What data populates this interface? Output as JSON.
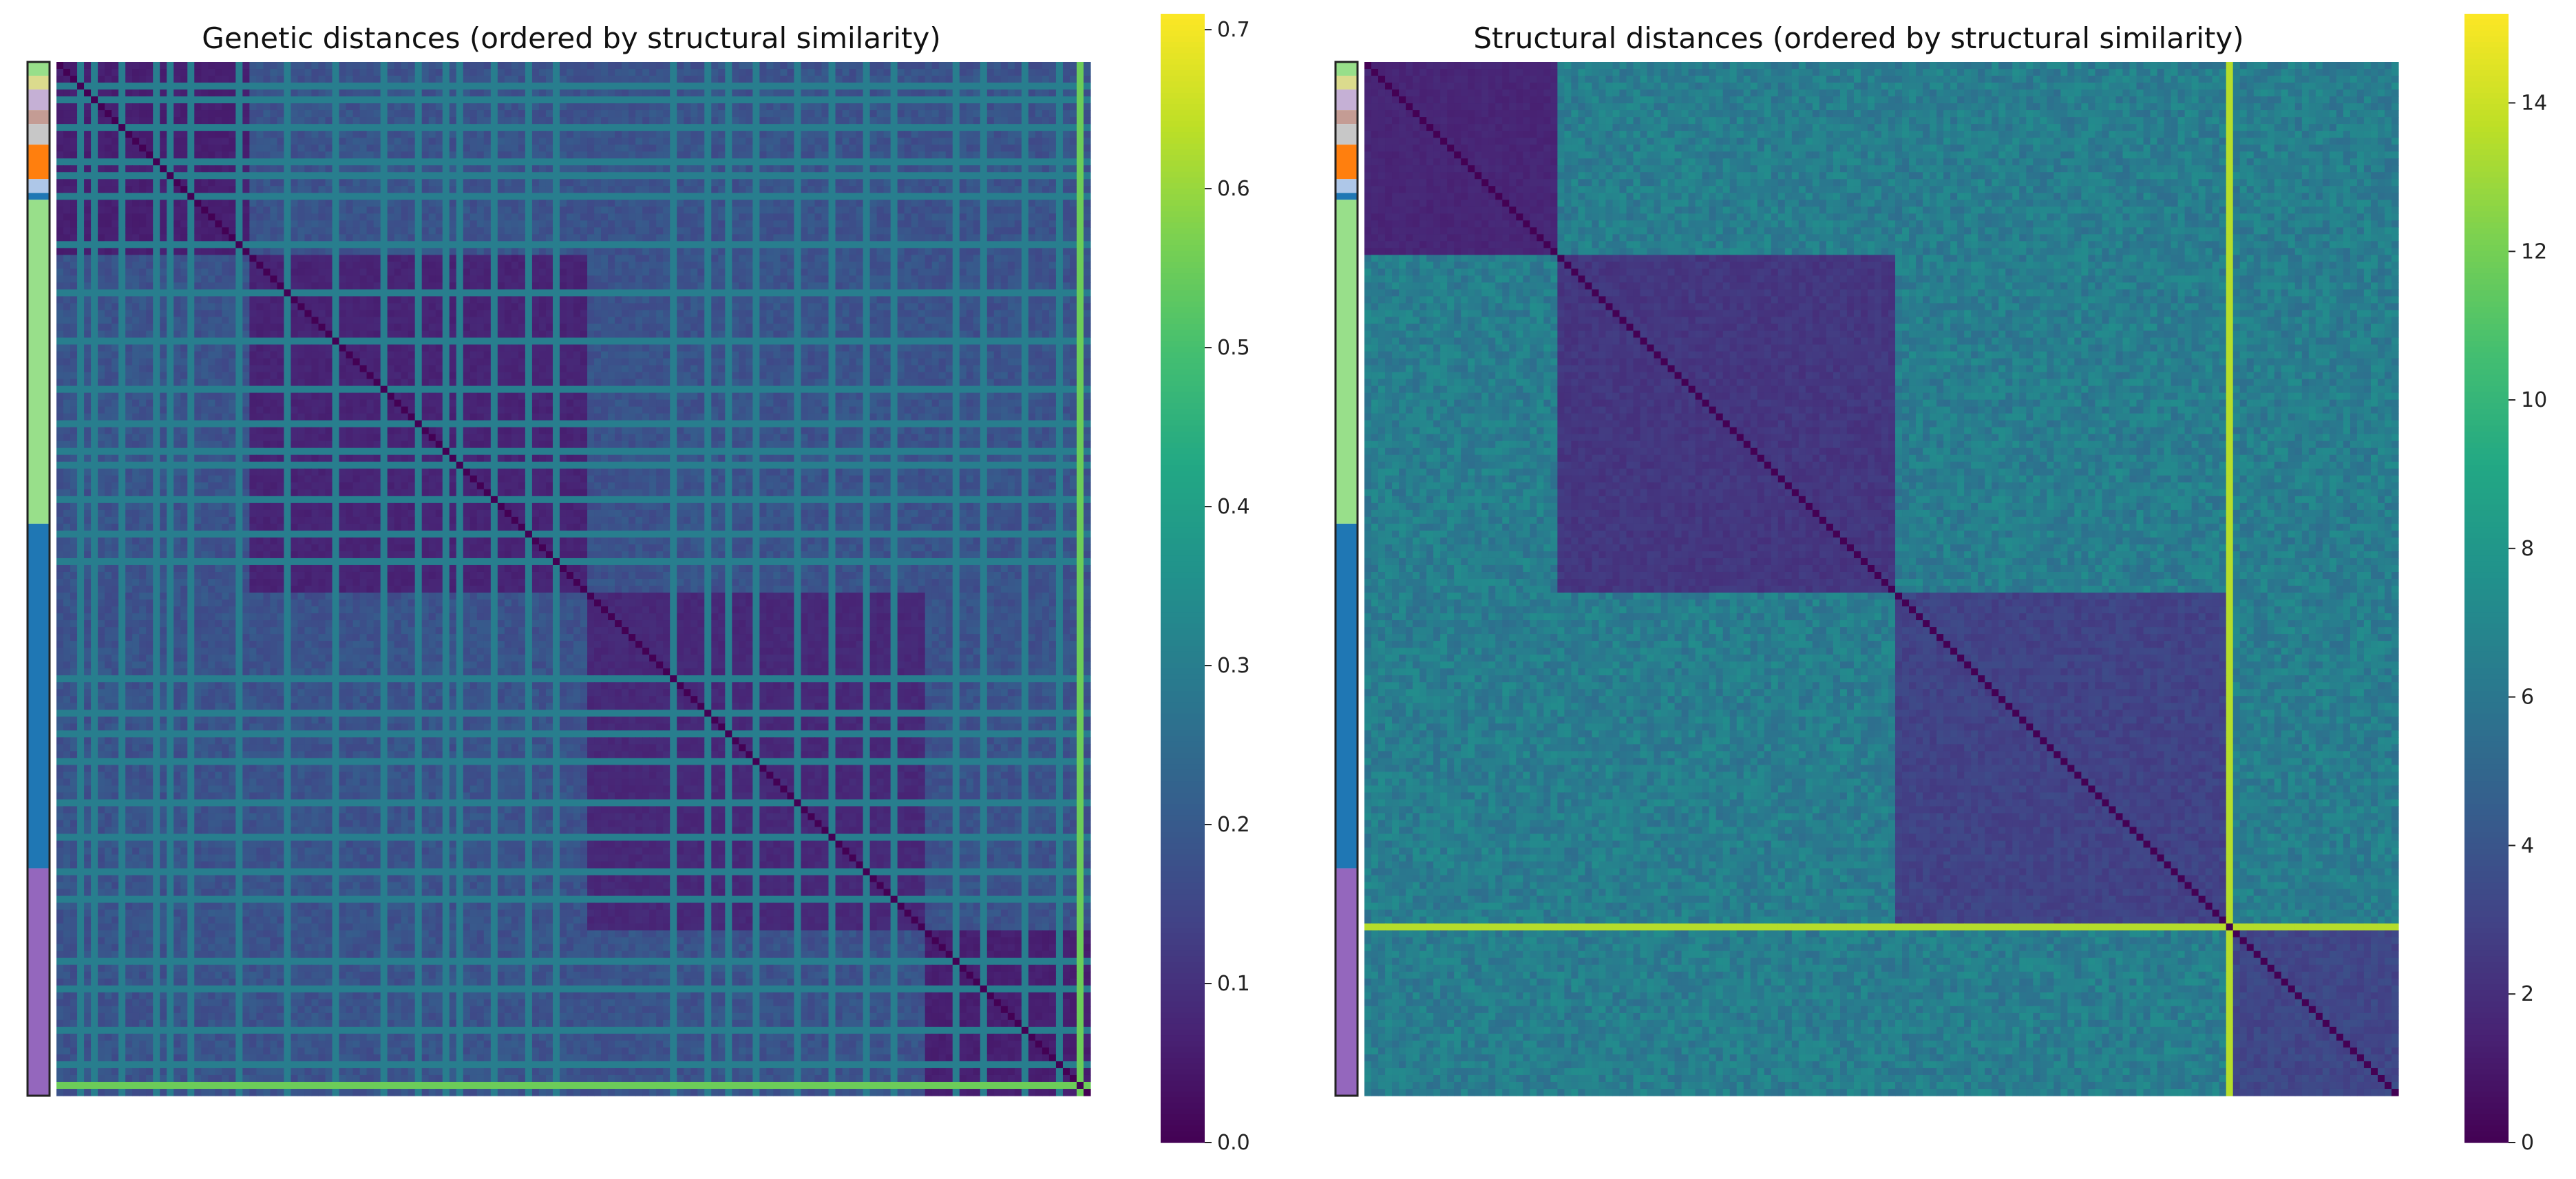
{
  "figure": {
    "colormap": "viridis",
    "colormap_stops": [
      "#440154",
      "#482475",
      "#414487",
      "#355f8d",
      "#2a788e",
      "#21918c",
      "#22a884",
      "#44bf70",
      "#7ad151",
      "#bddf26",
      "#fde725"
    ]
  },
  "chart_data": [
    {
      "type": "heatmap",
      "title": "Genetic distances (ordered by structural similarity)",
      "xlabel": "",
      "ylabel": "",
      "n": 150,
      "colorbar": {
        "vmin": 0.0,
        "vmax": 0.71,
        "ticks": [
          "0.0",
          "0.1",
          "0.2",
          "0.3",
          "0.4",
          "0.5",
          "0.6",
          "0.7"
        ],
        "tick_values": [
          0.0,
          0.1,
          0.2,
          0.3,
          0.4,
          0.5,
          0.6,
          0.7
        ]
      },
      "groups": [
        {
          "start": 0,
          "end": 28,
          "color": "#9467bd",
          "within": 0.06
        },
        {
          "start": 28,
          "end": 77,
          "color": "#98df8a",
          "within": 0.07
        },
        {
          "start": 77,
          "end": 126,
          "color": "#1f77b4",
          "within": 0.08
        },
        {
          "start": 126,
          "end": 150,
          "color": "#9467bd",
          "within": 0.06
        }
      ],
      "between_value": 0.18,
      "line_indices": [
        3,
        5,
        9,
        14,
        16,
        19,
        26,
        33,
        40,
        47,
        52,
        56,
        58,
        63,
        68,
        72,
        89,
        94,
        97,
        101,
        107,
        112,
        117,
        121,
        130,
        134,
        140,
        145
      ],
      "line_value": 0.3,
      "bright_indices": [
        148
      ],
      "bright_value": 0.55,
      "sidebar": [
        {
          "start": 0,
          "end": 2,
          "color": "#98df8a"
        },
        {
          "start": 2,
          "end": 4,
          "color": "#dbdb8d"
        },
        {
          "start": 4,
          "end": 7,
          "color": "#c5b0d5"
        },
        {
          "start": 7,
          "end": 9,
          "color": "#c49c94"
        },
        {
          "start": 9,
          "end": 12,
          "color": "#c7c7c7"
        },
        {
          "start": 12,
          "end": 17,
          "color": "#ff7f0e"
        },
        {
          "start": 17,
          "end": 19,
          "color": "#aec7e8"
        },
        {
          "start": 19,
          "end": 20,
          "color": "#1f77b4"
        },
        {
          "start": 20,
          "end": 67,
          "color": "#98df8a"
        },
        {
          "start": 67,
          "end": 117,
          "color": "#1f77b4"
        },
        {
          "start": 117,
          "end": 150,
          "color": "#9467bd"
        }
      ]
    },
    {
      "type": "heatmap",
      "title": "Structural distances (ordered by structural similarity)",
      "xlabel": "",
      "ylabel": "",
      "n": 150,
      "colorbar": {
        "vmin": 0,
        "vmax": 15.2,
        "ticks": [
          "0",
          "2",
          "4",
          "6",
          "8",
          "10",
          "12",
          "14"
        ],
        "tick_values": [
          0,
          2,
          4,
          6,
          8,
          10,
          12,
          14
        ]
      },
      "groups": [
        {
          "start": 0,
          "end": 28,
          "color": "#440154",
          "within": 1.6
        },
        {
          "start": 28,
          "end": 77,
          "color": "#98df8a",
          "within": 2.4
        },
        {
          "start": 77,
          "end": 126,
          "color": "#1f77b4",
          "within": 3.0
        },
        {
          "start": 126,
          "end": 150,
          "color": "#9467bd",
          "within": 3.2
        }
      ],
      "between_value": 6.4,
      "line_indices": [],
      "line_value": 6.4,
      "bright_indices": [
        125
      ],
      "bright_value": 13.5,
      "sidebar": [
        {
          "start": 0,
          "end": 2,
          "color": "#98df8a"
        },
        {
          "start": 2,
          "end": 4,
          "color": "#dbdb8d"
        },
        {
          "start": 4,
          "end": 7,
          "color": "#c5b0d5"
        },
        {
          "start": 7,
          "end": 9,
          "color": "#c49c94"
        },
        {
          "start": 9,
          "end": 12,
          "color": "#c7c7c7"
        },
        {
          "start": 12,
          "end": 17,
          "color": "#ff7f0e"
        },
        {
          "start": 17,
          "end": 19,
          "color": "#aec7e8"
        },
        {
          "start": 19,
          "end": 20,
          "color": "#1f77b4"
        },
        {
          "start": 20,
          "end": 67,
          "color": "#98df8a"
        },
        {
          "start": 67,
          "end": 117,
          "color": "#1f77b4"
        },
        {
          "start": 117,
          "end": 150,
          "color": "#9467bd"
        }
      ]
    }
  ]
}
